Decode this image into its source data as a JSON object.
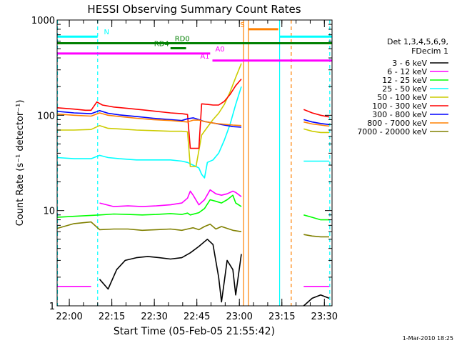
{
  "chart_data": {
    "type": "line",
    "title": "HESSI Observing Summary Count Rates",
    "xlabel": "Start Time (05-Feb-05 21:55:42)",
    "ylabel": "Count Rate (s⁻¹ detector⁻¹)",
    "x_unit": "minutes after 21:55:42",
    "xlim": [
      0,
      97
    ],
    "ylim": [
      1,
      1000
    ],
    "y_scale": "log",
    "x_ticks": [
      {
        "x": 4.3,
        "label": "22:00"
      },
      {
        "x": 19.3,
        "label": "22:15"
      },
      {
        "x": 34.3,
        "label": "22:30"
      },
      {
        "x": 49.3,
        "label": "22:45"
      },
      {
        "x": 64.3,
        "label": "23:00"
      },
      {
        "x": 79.3,
        "label": "23:15"
      },
      {
        "x": 94.3,
        "label": "23:30"
      }
    ],
    "y_ticks": [
      {
        "y": 1,
        "label": "1"
      },
      {
        "y": 10,
        "label": "10"
      },
      {
        "y": 100,
        "label": "100"
      },
      {
        "y": 1000,
        "label": "1000"
      }
    ],
    "legend": {
      "position": "right",
      "header": [
        "Det 1,3,4,5,6,9,",
        "FDecim 1"
      ]
    },
    "series": [
      {
        "name": "3 - 6 keV",
        "color": "#000000",
        "segments": [
          [
            [
              15,
              1.9
            ],
            [
              18,
              1.5
            ],
            [
              21,
              2.4
            ],
            [
              24,
              3.0
            ],
            [
              28,
              3.2
            ],
            [
              32,
              3.3
            ],
            [
              36,
              3.2
            ],
            [
              40,
              3.1
            ],
            [
              44,
              3.2
            ],
            [
              47,
              3.6
            ],
            [
              50,
              4.2
            ],
            [
              53,
              5.0
            ],
            [
              55,
              4.4
            ],
            [
              57,
              2.0
            ],
            [
              58,
              1.1
            ],
            [
              60,
              3.0
            ],
            [
              62,
              2.4
            ],
            [
              63,
              1.3
            ],
            [
              65,
              3.5
            ]
          ],
          [
            [
              87,
              1.0
            ],
            [
              90,
              1.2
            ],
            [
              93,
              1.3
            ],
            [
              96,
              1.2
            ]
          ]
        ]
      },
      {
        "name": "6 - 12 keV",
        "color": "#ff00ff",
        "segments": [
          [
            [
              0,
              1.6
            ],
            [
              6,
              1.6
            ],
            [
              12,
              1.6
            ]
          ],
          [
            [
              15,
              12.0
            ],
            [
              20,
              11.0
            ],
            [
              25,
              11.2
            ],
            [
              30,
              11.0
            ],
            [
              35,
              11.2
            ],
            [
              40,
              11.5
            ],
            [
              44,
              12.0
            ],
            [
              46,
              13.5
            ],
            [
              47,
              16.0
            ],
            [
              48,
              14.5
            ],
            [
              50,
              11.5
            ],
            [
              52,
              13.0
            ],
            [
              54,
              16.5
            ],
            [
              56,
              15.0
            ],
            [
              58,
              14.5
            ],
            [
              60,
              15.0
            ],
            [
              62,
              16.0
            ],
            [
              63,
              15.5
            ],
            [
              65,
              14.0
            ]
          ],
          [
            [
              87,
              1.6
            ],
            [
              90,
              1.6
            ],
            [
              93,
              1.6
            ],
            [
              96,
              1.6
            ]
          ]
        ]
      },
      {
        "name": "12 - 25 keV",
        "color": "#00ff00",
        "segments": [
          [
            [
              0,
              8.5
            ],
            [
              6,
              8.7
            ],
            [
              12,
              8.9
            ],
            [
              15,
              9.0
            ],
            [
              20,
              9.2
            ],
            [
              25,
              9.1
            ],
            [
              30,
              9.0
            ],
            [
              35,
              9.1
            ],
            [
              40,
              9.3
            ],
            [
              44,
              9.1
            ],
            [
              46,
              9.4
            ],
            [
              47,
              9.0
            ],
            [
              50,
              9.5
            ],
            [
              52,
              10.5
            ],
            [
              54,
              13.0
            ],
            [
              56,
              12.5
            ],
            [
              58,
              12.0
            ],
            [
              60,
              13.0
            ],
            [
              62,
              14.5
            ],
            [
              63,
              12.0
            ],
            [
              65,
              11.0
            ]
          ],
          [
            [
              87,
              9.0
            ],
            [
              90,
              8.5
            ],
            [
              93,
              8.0
            ],
            [
              96,
              8.0
            ]
          ]
        ]
      },
      {
        "name": "25 - 50 keV",
        "color": "#00ffff",
        "segments": [
          [
            [
              0,
              36
            ],
            [
              6,
              35
            ],
            [
              12,
              35
            ],
            [
              15,
              38
            ],
            [
              18,
              36
            ],
            [
              22,
              35
            ],
            [
              28,
              34
            ],
            [
              34,
              34
            ],
            [
              40,
              34
            ],
            [
              44,
              33
            ],
            [
              46,
              32
            ],
            [
              48,
              30
            ],
            [
              50,
              28
            ],
            [
              51,
              24
            ],
            [
              52,
              22
            ],
            [
              53,
              32
            ],
            [
              55,
              34
            ],
            [
              57,
              40
            ],
            [
              59,
              55
            ],
            [
              61,
              80
            ],
            [
              63,
              130
            ],
            [
              65,
              200
            ]
          ],
          [
            [
              87,
              33
            ],
            [
              90,
              33
            ],
            [
              93,
              33
            ],
            [
              96,
              33
            ]
          ]
        ]
      },
      {
        "name": "50 - 100 keV",
        "color": "#cccc00",
        "segments": [
          [
            [
              0,
              70
            ],
            [
              6,
              70
            ],
            [
              12,
              71
            ],
            [
              15,
              78
            ],
            [
              18,
              73
            ],
            [
              22,
              72
            ],
            [
              28,
              70
            ],
            [
              34,
              69
            ],
            [
              40,
              68
            ],
            [
              44,
              68
            ],
            [
              46,
              67
            ],
            [
              47,
              29
            ],
            [
              49,
              29
            ],
            [
              51,
              62
            ],
            [
              53,
              75
            ],
            [
              55,
              90
            ],
            [
              57,
              105
            ],
            [
              59,
              130
            ],
            [
              61,
              175
            ],
            [
              63,
              250
            ],
            [
              65,
              350
            ]
          ],
          [
            [
              87,
              72
            ],
            [
              90,
              68
            ],
            [
              93,
              66
            ],
            [
              96,
              66
            ]
          ]
        ]
      },
      {
        "name": "100 - 300 keV",
        "color": "#ff0000",
        "segments": [
          [
            [
              0,
              120
            ],
            [
              6,
              116
            ],
            [
              10,
              113
            ],
            [
              12,
              113
            ],
            [
              14,
              138
            ],
            [
              16,
              128
            ],
            [
              20,
              122
            ],
            [
              25,
              118
            ],
            [
              30,
              114
            ],
            [
              35,
              110
            ],
            [
              40,
              106
            ],
            [
              44,
              104
            ],
            [
              46,
              102
            ],
            [
              47,
              45
            ],
            [
              50,
              45
            ],
            [
              51,
              132
            ],
            [
              53,
              130
            ],
            [
              55,
              128
            ],
            [
              57,
              128
            ],
            [
              59,
              140
            ],
            [
              61,
              165
            ],
            [
              63,
              205
            ],
            [
              65,
              240
            ]
          ],
          [
            [
              87,
              115
            ],
            [
              90,
              106
            ],
            [
              93,
              100
            ],
            [
              96,
              96
            ]
          ]
        ]
      },
      {
        "name": "300 - 800 keV",
        "color": "#0000ff",
        "segments": [
          [
            [
              0,
              110
            ],
            [
              6,
              106
            ],
            [
              12,
              104
            ],
            [
              15,
              112
            ],
            [
              18,
              105
            ],
            [
              22,
              101
            ],
            [
              28,
              97
            ],
            [
              34,
              93
            ],
            [
              40,
              90
            ],
            [
              44,
              88
            ],
            [
              46,
              92
            ],
            [
              48,
              94
            ],
            [
              50,
              90
            ],
            [
              52,
              86
            ],
            [
              54,
              84
            ],
            [
              56,
              82
            ],
            [
              58,
              80
            ],
            [
              60,
              78
            ],
            [
              62,
              76
            ],
            [
              65,
              75
            ]
          ],
          [
            [
              87,
              90
            ],
            [
              90,
              85
            ],
            [
              93,
              82
            ],
            [
              96,
              80
            ]
          ]
        ]
      },
      {
        "name": "800 - 7000 keV",
        "color": "#ff8000",
        "segments": [
          [
            [
              0,
              103
            ],
            [
              6,
              100
            ],
            [
              12,
              98
            ],
            [
              15,
              106
            ],
            [
              18,
              100
            ],
            [
              22,
              97
            ],
            [
              28,
              93
            ],
            [
              34,
              90
            ],
            [
              40,
              88
            ],
            [
              44,
              86
            ],
            [
              46,
              85
            ],
            [
              48,
              89
            ],
            [
              50,
              89
            ],
            [
              52,
              86
            ],
            [
              54,
              84
            ],
            [
              56,
              82
            ],
            [
              58,
              81
            ],
            [
              60,
              80
            ],
            [
              62,
              79
            ],
            [
              65,
              78
            ]
          ],
          [
            [
              87,
              85
            ],
            [
              90,
              81
            ],
            [
              93,
              79
            ],
            [
              96,
              77
            ]
          ]
        ]
      },
      {
        "name": "7000 - 20000 keV",
        "color": "#808000",
        "segments": [
          [
            [
              0,
              6.5
            ],
            [
              6,
              7.3
            ],
            [
              12,
              7.6
            ],
            [
              15,
              6.3
            ],
            [
              20,
              6.4
            ],
            [
              25,
              6.4
            ],
            [
              30,
              6.2
            ],
            [
              35,
              6.3
            ],
            [
              40,
              6.4
            ],
            [
              44,
              6.2
            ],
            [
              46,
              6.4
            ],
            [
              48,
              6.6
            ],
            [
              50,
              6.3
            ],
            [
              52,
              6.8
            ],
            [
              54,
              7.2
            ],
            [
              56,
              6.4
            ],
            [
              58,
              6.8
            ],
            [
              60,
              6.5
            ],
            [
              62,
              6.2
            ],
            [
              65,
              6.0
            ]
          ],
          [
            [
              87,
              5.6
            ],
            [
              90,
              5.4
            ],
            [
              93,
              5.3
            ],
            [
              96,
              5.3
            ]
          ]
        ]
      }
    ],
    "vertical_lines": [
      {
        "x": 0,
        "color": "#00ffff",
        "style": "dashed"
      },
      {
        "x": 14.3,
        "color": "#00ffff",
        "style": "dashed"
      },
      {
        "x": 65.8,
        "color": "#ff8000",
        "style": "solid"
      },
      {
        "x": 67.5,
        "color": "#ff8000",
        "style": "solid"
      },
      {
        "x": 78.5,
        "color": "#00ffff",
        "style": "solid"
      },
      {
        "x": 82.6,
        "color": "#ff8000",
        "style": "dashed"
      },
      {
        "x": 96.2,
        "color": "#00ffff",
        "style": "dashed"
      }
    ],
    "state_bars": [
      {
        "label": "N",
        "color": "#00ffff",
        "y": 670,
        "ranges": [
          [
            0,
            14.3
          ],
          [
            78.5,
            97
          ]
        ],
        "label_x": 16.5,
        "label_side": "right"
      },
      {
        "label": "RD0",
        "color": "#008000",
        "y": 570,
        "ranges": [
          [
            0,
            97
          ]
        ],
        "label_x": 41.5,
        "label_side": "right"
      },
      {
        "label": "RD4",
        "color": "#008000",
        "y": 505,
        "ranges": [
          [
            40,
            45.5
          ]
        ],
        "label_x": 39.5,
        "label_side": "left"
      },
      {
        "label": "A0",
        "color": "#ff00ff",
        "y": 445,
        "ranges": [
          [
            0,
            54
          ]
        ],
        "label_x": 55.8,
        "label_side": "right"
      },
      {
        "label": "A1",
        "color": "#ff00ff",
        "y": 375,
        "ranges": [
          [
            54.8,
            97
          ]
        ],
        "label_x": 53.8,
        "label_side": "left"
      },
      {
        "label": "S",
        "color": "#ff8000",
        "y": 800,
        "ranges": [
          [
            67.5,
            78
          ]
        ],
        "label_x": 66.2,
        "label_side": "left"
      }
    ],
    "footer_date": "1-Mar-2010 18:25",
    "grid": false
  }
}
